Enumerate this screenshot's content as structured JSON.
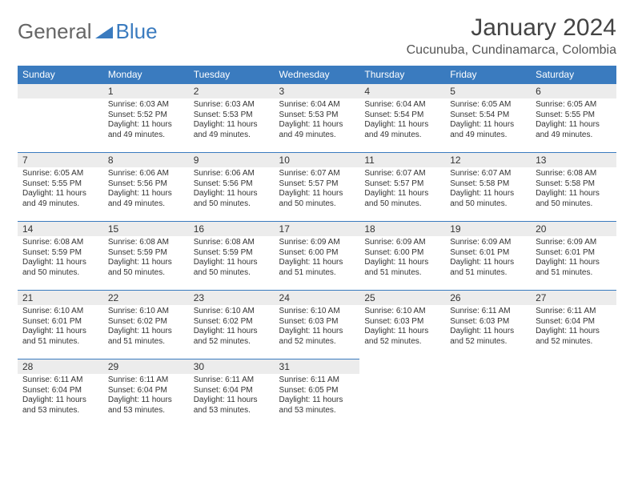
{
  "logo": {
    "part1": "General",
    "part2": "Blue"
  },
  "title": "January 2024",
  "location": "Cucunuba, Cundinamarca, Colombia",
  "weekdays": [
    "Sunday",
    "Monday",
    "Tuesday",
    "Wednesday",
    "Thursday",
    "Friday",
    "Saturday"
  ],
  "colors": {
    "header_bg": "#3a7bbf",
    "header_text": "#ffffff",
    "daynum_bg": "#ececec",
    "rule": "#3a7bbf",
    "text": "#333333",
    "logo_gray": "#666666",
    "logo_blue": "#3a7bbf"
  },
  "first_weekday_index": 1,
  "days": [
    {
      "n": "1",
      "sunrise": "6:03 AM",
      "sunset": "5:52 PM",
      "daylight": "11 hours and 49 minutes."
    },
    {
      "n": "2",
      "sunrise": "6:03 AM",
      "sunset": "5:53 PM",
      "daylight": "11 hours and 49 minutes."
    },
    {
      "n": "3",
      "sunrise": "6:04 AM",
      "sunset": "5:53 PM",
      "daylight": "11 hours and 49 minutes."
    },
    {
      "n": "4",
      "sunrise": "6:04 AM",
      "sunset": "5:54 PM",
      "daylight": "11 hours and 49 minutes."
    },
    {
      "n": "5",
      "sunrise": "6:05 AM",
      "sunset": "5:54 PM",
      "daylight": "11 hours and 49 minutes."
    },
    {
      "n": "6",
      "sunrise": "6:05 AM",
      "sunset": "5:55 PM",
      "daylight": "11 hours and 49 minutes."
    },
    {
      "n": "7",
      "sunrise": "6:05 AM",
      "sunset": "5:55 PM",
      "daylight": "11 hours and 49 minutes."
    },
    {
      "n": "8",
      "sunrise": "6:06 AM",
      "sunset": "5:56 PM",
      "daylight": "11 hours and 49 minutes."
    },
    {
      "n": "9",
      "sunrise": "6:06 AM",
      "sunset": "5:56 PM",
      "daylight": "11 hours and 50 minutes."
    },
    {
      "n": "10",
      "sunrise": "6:07 AM",
      "sunset": "5:57 PM",
      "daylight": "11 hours and 50 minutes."
    },
    {
      "n": "11",
      "sunrise": "6:07 AM",
      "sunset": "5:57 PM",
      "daylight": "11 hours and 50 minutes."
    },
    {
      "n": "12",
      "sunrise": "6:07 AM",
      "sunset": "5:58 PM",
      "daylight": "11 hours and 50 minutes."
    },
    {
      "n": "13",
      "sunrise": "6:08 AM",
      "sunset": "5:58 PM",
      "daylight": "11 hours and 50 minutes."
    },
    {
      "n": "14",
      "sunrise": "6:08 AM",
      "sunset": "5:59 PM",
      "daylight": "11 hours and 50 minutes."
    },
    {
      "n": "15",
      "sunrise": "6:08 AM",
      "sunset": "5:59 PM",
      "daylight": "11 hours and 50 minutes."
    },
    {
      "n": "16",
      "sunrise": "6:08 AM",
      "sunset": "5:59 PM",
      "daylight": "11 hours and 50 minutes."
    },
    {
      "n": "17",
      "sunrise": "6:09 AM",
      "sunset": "6:00 PM",
      "daylight": "11 hours and 51 minutes."
    },
    {
      "n": "18",
      "sunrise": "6:09 AM",
      "sunset": "6:00 PM",
      "daylight": "11 hours and 51 minutes."
    },
    {
      "n": "19",
      "sunrise": "6:09 AM",
      "sunset": "6:01 PM",
      "daylight": "11 hours and 51 minutes."
    },
    {
      "n": "20",
      "sunrise": "6:09 AM",
      "sunset": "6:01 PM",
      "daylight": "11 hours and 51 minutes."
    },
    {
      "n": "21",
      "sunrise": "6:10 AM",
      "sunset": "6:01 PM",
      "daylight": "11 hours and 51 minutes."
    },
    {
      "n": "22",
      "sunrise": "6:10 AM",
      "sunset": "6:02 PM",
      "daylight": "11 hours and 51 minutes."
    },
    {
      "n": "23",
      "sunrise": "6:10 AM",
      "sunset": "6:02 PM",
      "daylight": "11 hours and 52 minutes."
    },
    {
      "n": "24",
      "sunrise": "6:10 AM",
      "sunset": "6:03 PM",
      "daylight": "11 hours and 52 minutes."
    },
    {
      "n": "25",
      "sunrise": "6:10 AM",
      "sunset": "6:03 PM",
      "daylight": "11 hours and 52 minutes."
    },
    {
      "n": "26",
      "sunrise": "6:11 AM",
      "sunset": "6:03 PM",
      "daylight": "11 hours and 52 minutes."
    },
    {
      "n": "27",
      "sunrise": "6:11 AM",
      "sunset": "6:04 PM",
      "daylight": "11 hours and 52 minutes."
    },
    {
      "n": "28",
      "sunrise": "6:11 AM",
      "sunset": "6:04 PM",
      "daylight": "11 hours and 53 minutes."
    },
    {
      "n": "29",
      "sunrise": "6:11 AM",
      "sunset": "6:04 PM",
      "daylight": "11 hours and 53 minutes."
    },
    {
      "n": "30",
      "sunrise": "6:11 AM",
      "sunset": "6:04 PM",
      "daylight": "11 hours and 53 minutes."
    },
    {
      "n": "31",
      "sunrise": "6:11 AM",
      "sunset": "6:05 PM",
      "daylight": "11 hours and 53 minutes."
    }
  ],
  "labels": {
    "sunrise": "Sunrise:",
    "sunset": "Sunset:",
    "daylight": "Daylight:"
  }
}
